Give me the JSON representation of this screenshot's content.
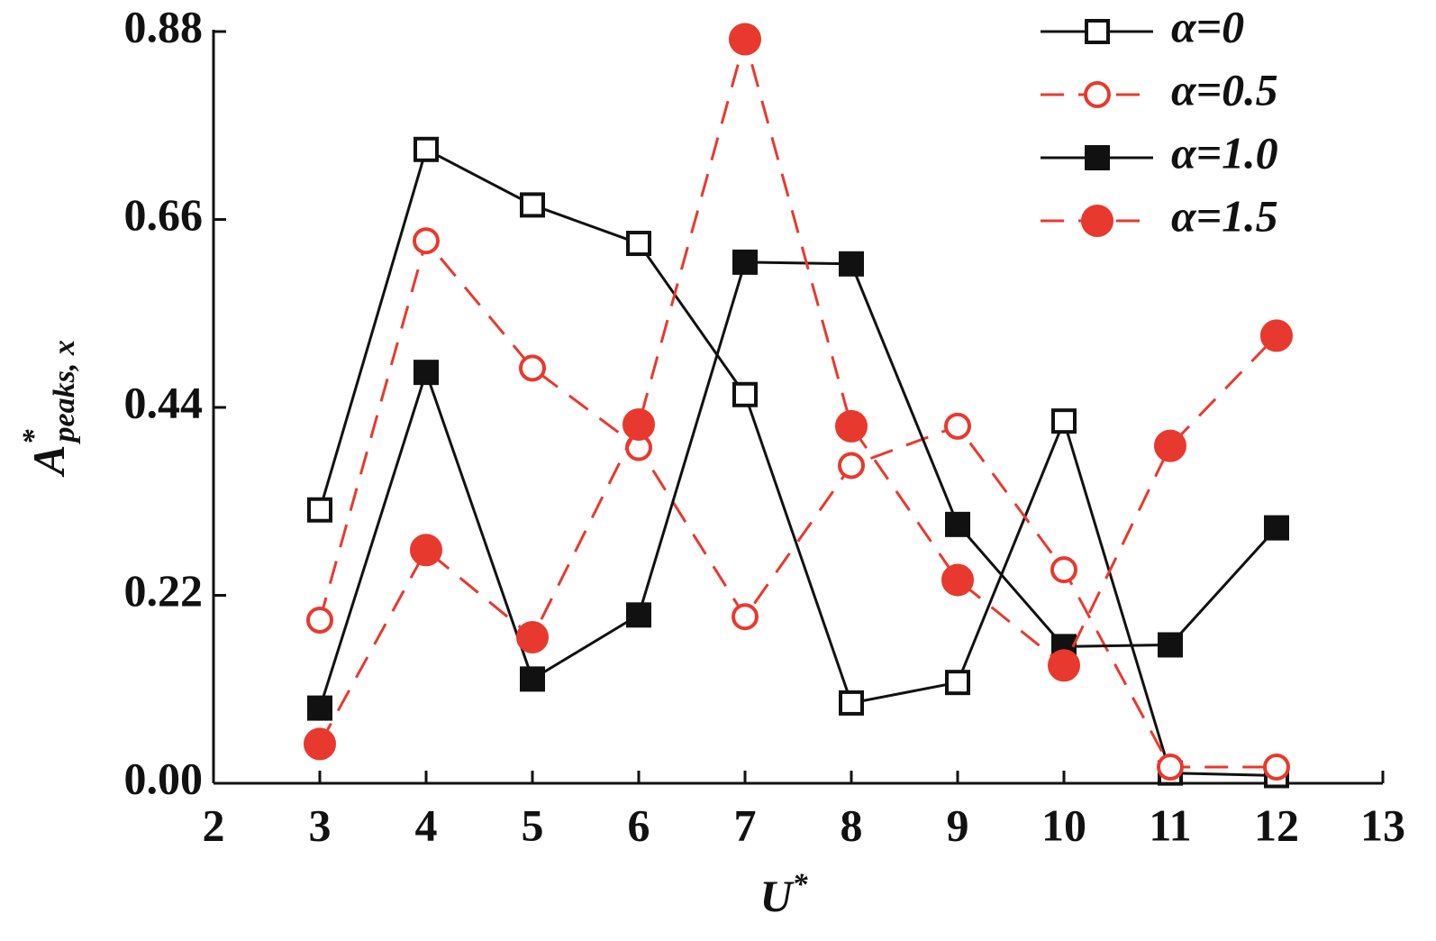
{
  "chart_data": {
    "type": "line",
    "xlabel": {
      "main": "U",
      "sup": "*"
    },
    "ylabel": {
      "main": "A",
      "sup": "*",
      "sub": "peaks, x"
    },
    "x": [
      3,
      4,
      5,
      6,
      7,
      8,
      9,
      10,
      11,
      12
    ],
    "xlim": [
      2,
      13
    ],
    "xticks": [
      2,
      3,
      4,
      5,
      6,
      7,
      8,
      9,
      10,
      11,
      12,
      13
    ],
    "ylim": [
      0,
      0.88
    ],
    "yticks": [
      {
        "value": 0,
        "label": "0.00"
      },
      0.22,
      0.44,
      0.66,
      0.88
    ],
    "grid": false,
    "legend": "upper right",
    "series": [
      {
        "name": "α=0",
        "color": "#111111",
        "line_style": "solid",
        "marker": "square",
        "filled": false,
        "values": [
          0.32,
          0.742,
          0.677,
          0.632,
          0.455,
          0.094,
          0.118,
          0.424,
          0.012,
          0.009
        ]
      },
      {
        "name": "α=0.5",
        "color": "#e8392f",
        "line_style": "dashed",
        "marker": "circle",
        "filled": false,
        "values": [
          0.191,
          0.635,
          0.486,
          0.393,
          0.195,
          0.372,
          0.418,
          0.25,
          0.019,
          0.019
        ]
      },
      {
        "name": "α=1.0",
        "color": "#111111",
        "line_style": "solid",
        "marker": "square",
        "filled": true,
        "values": [
          0.088,
          0.481,
          0.122,
          0.197,
          0.61,
          0.608,
          0.303,
          0.16,
          0.162,
          0.299
        ]
      },
      {
        "name": "α=1.5",
        "color": "#e8392f",
        "line_style": "dashed",
        "marker": "circle",
        "filled": true,
        "values": [
          0.046,
          0.273,
          0.171,
          0.42,
          0.871,
          0.418,
          0.238,
          0.138,
          0.395,
          0.524
        ]
      }
    ]
  }
}
